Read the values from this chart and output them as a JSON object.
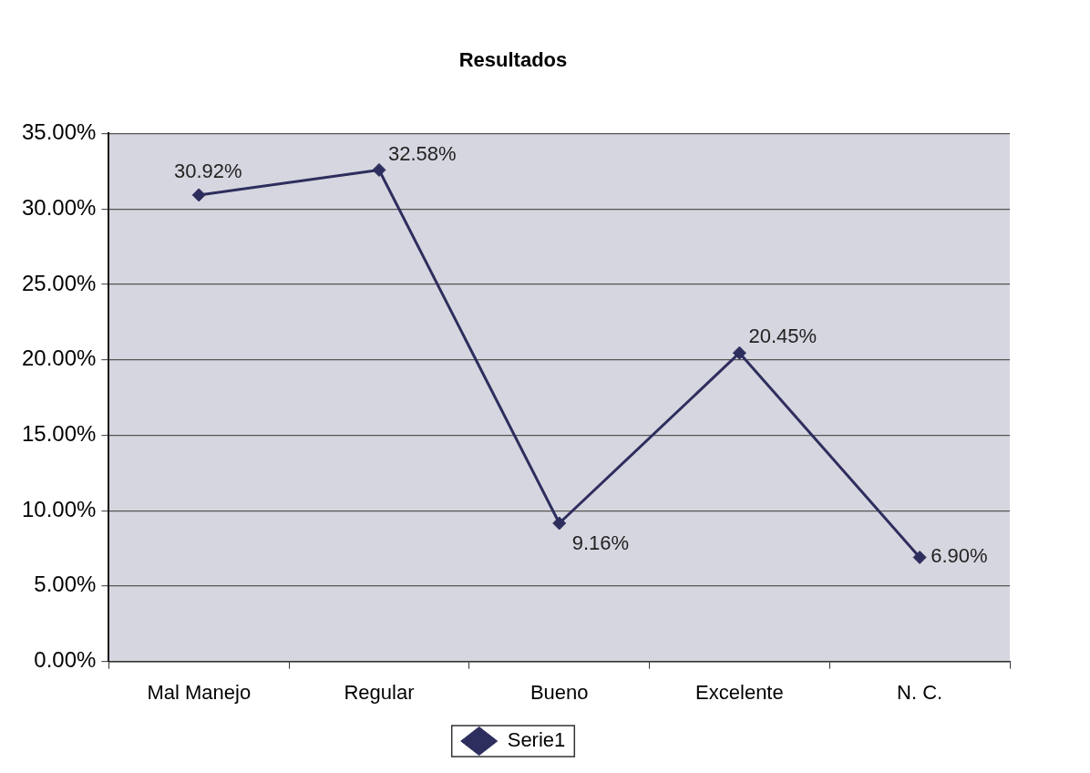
{
  "chart_data": {
    "type": "line",
    "title": "Resultados",
    "categories": [
      "Mal Manejo",
      "Regular",
      "Bueno",
      "Excelente",
      "N. C."
    ],
    "series": [
      {
        "name": "Serie1",
        "color": "#2e2e5e",
        "values": [
          30.92,
          32.58,
          9.16,
          20.45,
          6.9
        ],
        "value_labels": [
          "30.92%",
          "32.58%",
          "9.16%",
          "20.45%",
          "6.90%"
        ]
      }
    ],
    "ylim": [
      0,
      35
    ],
    "yticks": [
      {
        "value": 0,
        "label": "0.00%"
      },
      {
        "value": 5,
        "label": "5.00%"
      },
      {
        "value": 10,
        "label": "10.00%"
      },
      {
        "value": 15,
        "label": "15.00%"
      },
      {
        "value": 20,
        "label": "20.00%"
      },
      {
        "value": 25,
        "label": "25.00%"
      },
      {
        "value": 30,
        "label": "30.00%"
      },
      {
        "value": 35,
        "label": "35.00%"
      }
    ],
    "grid": "y",
    "legend": "bottom",
    "marker": "diamond",
    "line_style": "solid"
  }
}
